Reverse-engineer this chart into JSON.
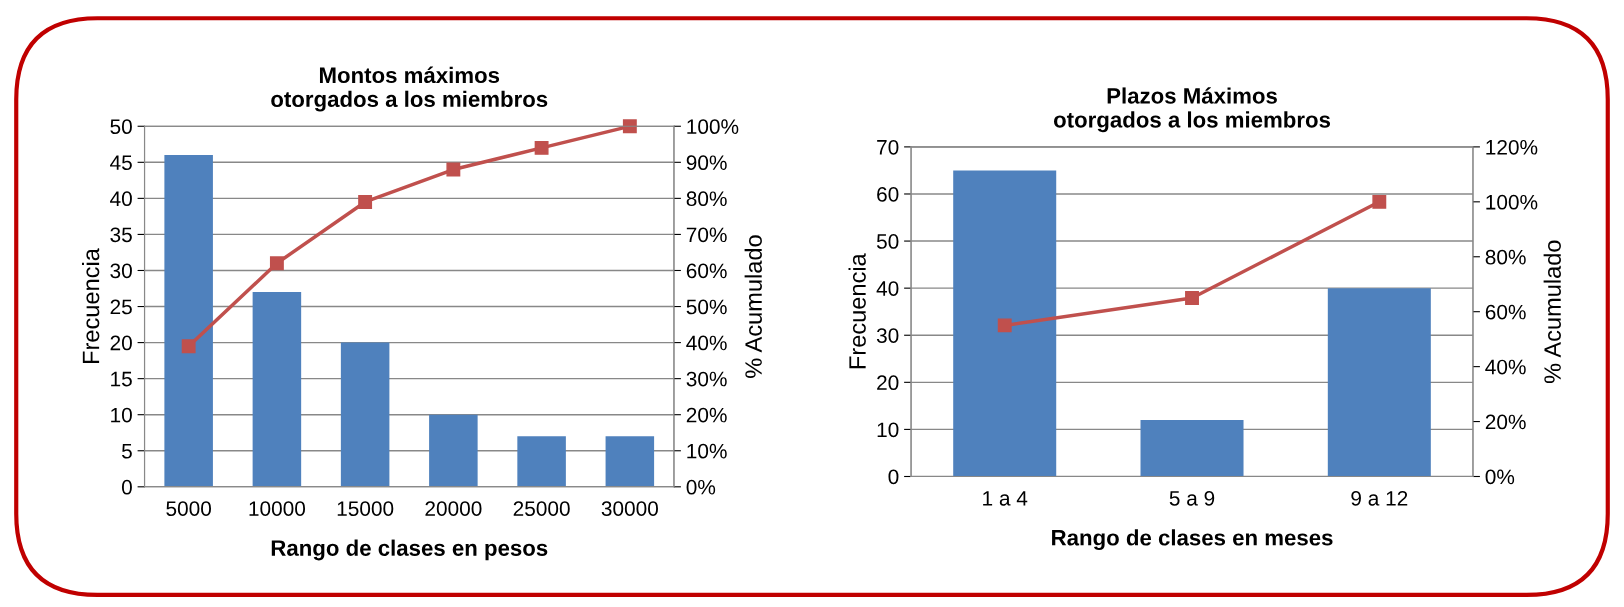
{
  "chart_data": [
    {
      "type": "bar",
      "title": "Montos máximos\notorgados a los miembros",
      "xlabel": "Rango de clases en pesos",
      "ylabel": "Frecuencia",
      "y2label": "% Acumulado",
      "categories": [
        "5000",
        "10000",
        "15000",
        "20000",
        "25000",
        "30000"
      ],
      "series": [
        {
          "color": "#4f81bd",
          "values": [
            46,
            27,
            20,
            10,
            7,
            7
          ]
        },
        {
          "type": "line",
          "axis": "y2",
          "color": "#c0504d",
          "marker": "square",
          "values": [
            39,
            62,
            79,
            88,
            94,
            100
          ]
        }
      ],
      "ylim": [
        0,
        50
      ],
      "yticks": [
        0,
        5,
        10,
        15,
        20,
        25,
        30,
        35,
        40,
        45,
        50
      ],
      "y2lim": [
        0,
        100
      ],
      "y2ticks": [
        {
          "value": 0,
          "label": "0%"
        },
        {
          "value": 10,
          "label": "10%"
        },
        {
          "value": 20,
          "label": "20%"
        },
        {
          "value": 30,
          "label": "30%"
        },
        {
          "value": 40,
          "label": "40%"
        },
        {
          "value": 50,
          "label": "50%"
        },
        {
          "value": 60,
          "label": "60%"
        },
        {
          "value": 70,
          "label": "70%"
        },
        {
          "value": 80,
          "label": "80%"
        },
        {
          "value": 90,
          "label": "90%"
        },
        {
          "value": 100,
          "label": "100%"
        }
      ],
      "grid": "y",
      "legend": false
    },
    {
      "type": "bar",
      "title": "Plazos Máximos\notorgados a los miembros",
      "xlabel": "Rango de clases en meses",
      "ylabel": "Frecuencia",
      "y2label": "% Acumulado",
      "categories": [
        "1 a 4",
        "5 a 9",
        "9 a 12"
      ],
      "series": [
        {
          "color": "#4f81bd",
          "values": [
            65,
            12,
            40
          ]
        },
        {
          "type": "line",
          "axis": "y2",
          "color": "#c0504d",
          "marker": "square",
          "values": [
            55,
            65,
            100
          ]
        }
      ],
      "ylim": [
        0,
        70
      ],
      "yticks": [
        0,
        10,
        20,
        30,
        40,
        50,
        60,
        70
      ],
      "y2lim": [
        0,
        120
      ],
      "y2ticks": [
        {
          "value": 0,
          "label": "0%"
        },
        {
          "value": 20,
          "label": "20%"
        },
        {
          "value": 40,
          "label": "40%"
        },
        {
          "value": 60,
          "label": "60%"
        },
        {
          "value": 80,
          "label": "80%"
        },
        {
          "value": 100,
          "label": "100%"
        },
        {
          "value": 120,
          "label": "120%"
        }
      ],
      "grid": "y",
      "legend": false
    }
  ]
}
